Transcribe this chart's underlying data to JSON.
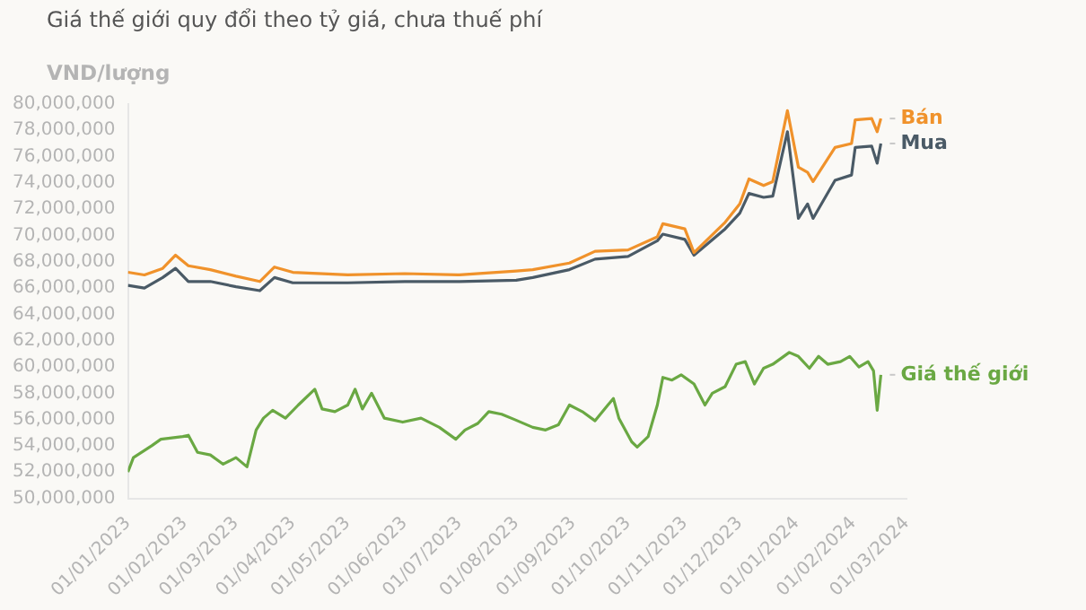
{
  "chart_data": {
    "type": "line",
    "title": "Giá thế giới quy đổi theo tỷ giá, chưa thuế phí",
    "ylabel": "VND/lượng",
    "series": [
      {
        "name": "Bán",
        "color": "#f0922b",
        "x": [
          "2023-01-01",
          "2023-01-10",
          "2023-01-20",
          "2023-01-27",
          "2023-02-03",
          "2023-02-15",
          "2023-03-01",
          "2023-03-14",
          "2023-03-22",
          "2023-04-01",
          "2023-05-01",
          "2023-06-01",
          "2023-07-01",
          "2023-08-01",
          "2023-08-10",
          "2023-08-30",
          "2023-09-13",
          "2023-10-01",
          "2023-10-17",
          "2023-10-20",
          "2023-11-01",
          "2023-11-06",
          "2023-11-23",
          "2023-12-01",
          "2023-12-06",
          "2023-12-14",
          "2023-12-19",
          "2023-12-27",
          "2024-01-02",
          "2024-01-07",
          "2024-01-10",
          "2024-01-22",
          "2024-01-31",
          "2024-02-02",
          "2024-02-11",
          "2024-02-14",
          "2024-02-16"
        ],
        "values": [
          67200000,
          67000000,
          67500000,
          68500000,
          67700000,
          67400000,
          66900000,
          66500000,
          67600000,
          67200000,
          67000000,
          67100000,
          67000000,
          67300000,
          67400000,
          67900000,
          68800000,
          68900000,
          69900000,
          70900000,
          70500000,
          68700000,
          71000000,
          72400000,
          74300000,
          73800000,
          74100000,
          79500000,
          75200000,
          74800000,
          74100000,
          76700000,
          77000000,
          78800000,
          78900000,
          77900000,
          78900000
        ]
      },
      {
        "name": "Mua",
        "color": "#4a5a66",
        "x": [
          "2023-01-01",
          "2023-01-10",
          "2023-01-20",
          "2023-01-27",
          "2023-02-03",
          "2023-02-15",
          "2023-03-01",
          "2023-03-14",
          "2023-03-22",
          "2023-04-01",
          "2023-05-01",
          "2023-06-01",
          "2023-07-01",
          "2023-08-01",
          "2023-08-10",
          "2023-08-30",
          "2023-09-13",
          "2023-10-01",
          "2023-10-17",
          "2023-10-20",
          "2023-11-01",
          "2023-11-06",
          "2023-11-23",
          "2023-12-01",
          "2023-12-06",
          "2023-12-14",
          "2023-12-19",
          "2023-12-27",
          "2024-01-02",
          "2024-01-07",
          "2024-01-10",
          "2024-01-22",
          "2024-01-31",
          "2024-02-02",
          "2024-02-11",
          "2024-02-14",
          "2024-02-16"
        ],
        "values": [
          66200000,
          66000000,
          66800000,
          67500000,
          66500000,
          66500000,
          66100000,
          65800000,
          66800000,
          66400000,
          66400000,
          66500000,
          66500000,
          66600000,
          66800000,
          67400000,
          68200000,
          68400000,
          69600000,
          70100000,
          69700000,
          68500000,
          70500000,
          71700000,
          73200000,
          72900000,
          73000000,
          77900000,
          71300000,
          72400000,
          71300000,
          74200000,
          74600000,
          76700000,
          76800000,
          75500000,
          77000000
        ]
      },
      {
        "name": "Giá thế giới",
        "color": "#6aa843",
        "x": [
          "2023-01-01",
          "2023-01-04",
          "2023-01-14",
          "2023-01-19",
          "2023-01-31",
          "2023-02-03",
          "2023-02-08",
          "2023-02-15",
          "2023-02-22",
          "2023-03-01",
          "2023-03-07",
          "2023-03-12",
          "2023-03-16",
          "2023-03-21",
          "2023-03-28",
          "2023-04-04",
          "2023-04-13",
          "2023-04-17",
          "2023-04-24",
          "2023-05-01",
          "2023-05-05",
          "2023-05-09",
          "2023-05-14",
          "2023-05-21",
          "2023-05-31",
          "2023-06-10",
          "2023-06-20",
          "2023-06-29",
          "2023-07-04",
          "2023-07-11",
          "2023-07-17",
          "2023-07-24",
          "2023-07-31",
          "2023-08-10",
          "2023-08-17",
          "2023-08-24",
          "2023-08-30",
          "2023-09-06",
          "2023-09-13",
          "2023-09-20",
          "2023-09-23",
          "2023-09-26",
          "2023-10-03",
          "2023-10-06",
          "2023-10-12",
          "2023-10-17",
          "2023-10-20",
          "2023-10-25",
          "2023-10-30",
          "2023-11-06",
          "2023-11-12",
          "2023-11-16",
          "2023-11-23",
          "2023-11-29",
          "2023-12-04",
          "2023-12-09",
          "2023-12-14",
          "2023-12-19",
          "2023-12-28",
          "2024-01-02",
          "2024-01-08",
          "2024-01-13",
          "2024-01-18",
          "2024-01-25",
          "2024-01-30",
          "2024-02-04",
          "2024-02-09",
          "2024-02-12",
          "2024-02-14",
          "2024-02-16"
        ],
        "values": [
          52000000,
          53100000,
          54000000,
          54500000,
          54700000,
          54800000,
          53500000,
          53300000,
          52600000,
          53100000,
          52400000,
          55200000,
          56100000,
          56700000,
          56100000,
          57100000,
          58300000,
          56800000,
          56600000,
          57100000,
          58300000,
          56800000,
          58000000,
          56100000,
          55800000,
          56100000,
          55400000,
          54500000,
          55200000,
          55700000,
          56600000,
          56400000,
          56000000,
          55400000,
          55200000,
          55600000,
          57100000,
          56600000,
          55900000,
          57100000,
          57600000,
          56100000,
          54300000,
          53900000,
          54700000,
          57100000,
          59200000,
          59000000,
          59400000,
          58700000,
          57100000,
          58000000,
          58500000,
          60200000,
          60400000,
          58700000,
          59900000,
          60200000,
          61100000,
          60800000,
          59900000,
          60800000,
          60200000,
          60400000,
          60800000,
          60000000,
          60400000,
          59700000,
          56700000,
          59400000
        ]
      }
    ],
    "xlim": [
      "2023-01-01",
      "2024-03-01"
    ],
    "xticks": [
      {
        "value": "2023-01-01",
        "label": "01/01/2023"
      },
      {
        "value": "2023-02-01",
        "label": "01/02/2023"
      },
      {
        "value": "2023-03-01",
        "label": "01/03/2023"
      },
      {
        "value": "2023-04-01",
        "label": "01/04/2023"
      },
      {
        "value": "2023-05-01",
        "label": "01/05/2023"
      },
      {
        "value": "2023-06-01",
        "label": "01/06/2023"
      },
      {
        "value": "2023-07-01",
        "label": "01/07/2023"
      },
      {
        "value": "2023-08-01",
        "label": "01/08/2023"
      },
      {
        "value": "2023-09-01",
        "label": "01/09/2023"
      },
      {
        "value": "2023-10-01",
        "label": "01/10/2023"
      },
      {
        "value": "2023-11-01",
        "label": "01/11/2023"
      },
      {
        "value": "2023-12-01",
        "label": "01/12/2023"
      },
      {
        "value": "2024-01-01",
        "label": "01/01/2024"
      },
      {
        "value": "2024-02-01",
        "label": "01/02/2024"
      },
      {
        "value": "2024-03-01",
        "label": "01/03/2024"
      }
    ],
    "ylim": [
      50000000,
      80000000
    ],
    "yticks": [
      {
        "value": 50000000,
        "label": "50,000,000"
      },
      {
        "value": 52000000,
        "label": "52,000,000"
      },
      {
        "value": 54000000,
        "label": "54,000,000"
      },
      {
        "value": 56000000,
        "label": "56,000,000"
      },
      {
        "value": 58000000,
        "label": "58,000,000"
      },
      {
        "value": 60000000,
        "label": "60,000,000"
      },
      {
        "value": 62000000,
        "label": "62,000,000"
      },
      {
        "value": 64000000,
        "label": "64,000,000"
      },
      {
        "value": 66000000,
        "label": "66,000,000"
      },
      {
        "value": 68000000,
        "label": "68,000,000"
      },
      {
        "value": 70000000,
        "label": "70,000,000"
      },
      {
        "value": 72000000,
        "label": "72,000,000"
      },
      {
        "value": 74000000,
        "label": "74,000,000"
      },
      {
        "value": 76000000,
        "label": "76,000,000"
      },
      {
        "value": 78000000,
        "label": "78,000,000"
      },
      {
        "value": 80000000,
        "label": "80,000,000"
      }
    ],
    "marker": "none",
    "line_style": "solid",
    "legend": false
  }
}
